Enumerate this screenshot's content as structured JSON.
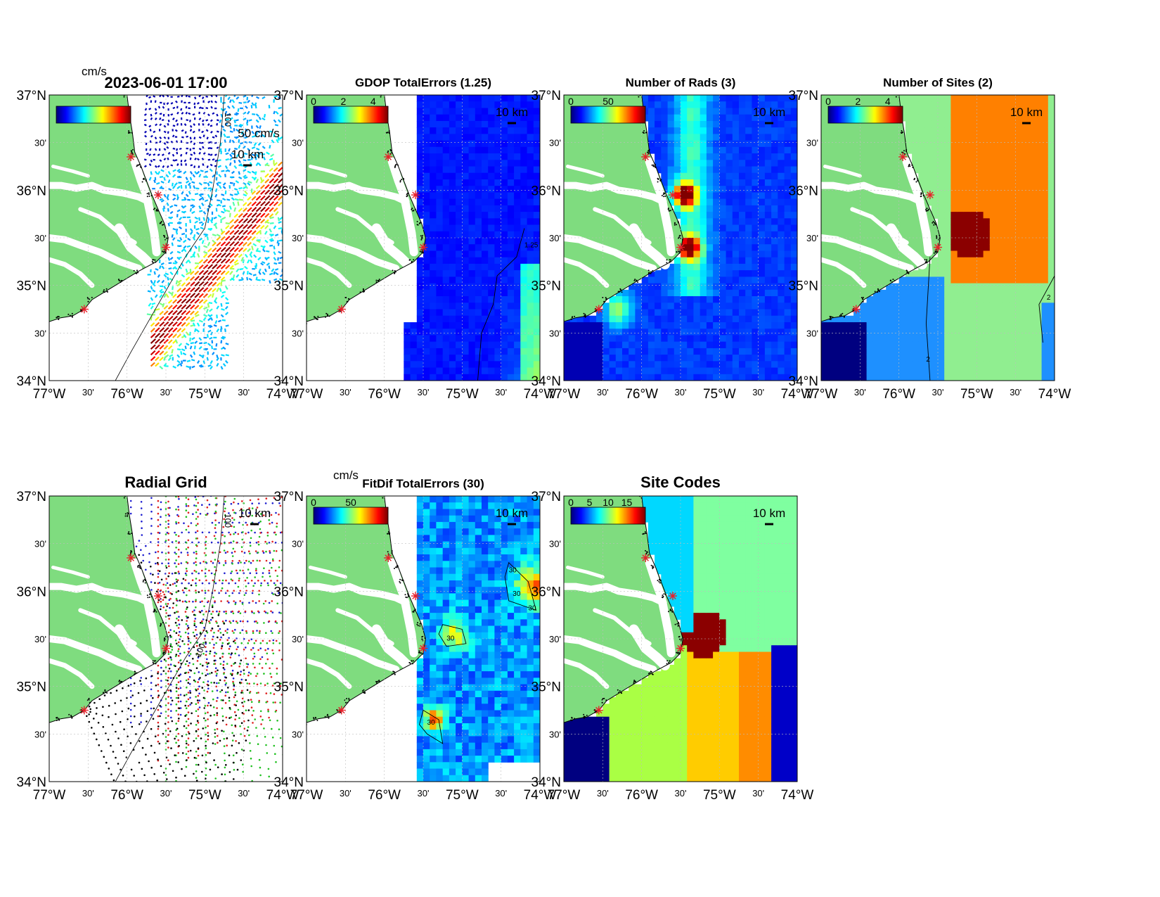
{
  "figure": {
    "background": "#ffffff"
  },
  "colors": {
    "land": "#7fdc7f",
    "coast_dots": "#000000",
    "site_marker": "#e8202a",
    "grid_line": "#bdbdbd",
    "contour": "#000000"
  },
  "icons": {
    "site": "red-star-icon",
    "colorbar": "jet-colorbar-icon",
    "scale": "scale-bar-icon"
  },
  "axes_common": {
    "lat_ticks": [
      "37°N",
      "30'",
      "36°N",
      "30'",
      "35°N",
      "30'",
      "34°N"
    ],
    "lon_ticks": [
      "77°W",
      "30'",
      "76°W",
      "30'",
      "75°W",
      "30'",
      "74°W"
    ],
    "scale_label": "10 km"
  },
  "chart_data": [
    {
      "panel": 1,
      "type": "heatmap",
      "title": "2023-06-01 17:00",
      "subtitle": "",
      "colorbar": {
        "unit": "cm/s",
        "colormap": "jet",
        "tick_labels": []
      },
      "annotations": [
        "50 cm/s",
        "10 km",
        "100"
      ],
      "xlim": [
        -77,
        -74
      ],
      "ylim": [
        34,
        37
      ],
      "sites": [
        {
          "lat": 36.35,
          "lon": -75.95
        },
        {
          "lat": 35.95,
          "lon": -75.6
        },
        {
          "lat": 35.4,
          "lon": -75.5
        },
        {
          "lat": 34.75,
          "lon": -76.55
        }
      ],
      "data_extent": {
        "lon": [
          -75.8,
          -74.0
        ],
        "lat": [
          34.0,
          37.0
        ]
      },
      "field": "surface current vectors",
      "max_speed_region": "Gulf Stream, southwest-northeast band"
    },
    {
      "panel": 2,
      "type": "heatmap",
      "title": "GDOP TotalErrors (1.25)",
      "colorbar": {
        "unit": "",
        "colormap": "jet",
        "tick_labels": [
          "0",
          "2",
          "4"
        ]
      },
      "contour_level": "1.25",
      "annotations": [
        "10 km"
      ],
      "xlim": [
        -77,
        -74
      ],
      "ylim": [
        34,
        37
      ],
      "data_extent": {
        "lon": [
          -75.55,
          -74.0
        ],
        "lat": [
          34.0,
          37.0
        ]
      }
    },
    {
      "panel": 3,
      "type": "heatmap",
      "title": "Number of Rads (3)",
      "colorbar": {
        "unit": "",
        "colormap": "jet",
        "tick_labels": [
          "0",
          "50"
        ]
      },
      "annotations": [
        "10 km"
      ],
      "xlim": [
        -77,
        -74
      ],
      "ylim": [
        34,
        37
      ],
      "data_extent": {
        "lon": [
          -77.0,
          -74.0
        ],
        "lat": [
          34.0,
          37.0
        ]
      }
    },
    {
      "panel": 4,
      "type": "heatmap",
      "title": "Number of Sites (2)",
      "colorbar": {
        "unit": "",
        "colormap": "jet",
        "tick_labels": [
          "0",
          "2",
          "4"
        ]
      },
      "contour_labels": [
        "2",
        "2"
      ],
      "annotations": [
        "10 km"
      ],
      "xlim": [
        -77,
        -74
      ],
      "ylim": [
        34,
        37
      ],
      "data_extent": {
        "lon": [
          -77.0,
          -74.0
        ],
        "lat": [
          34.0,
          37.0
        ]
      },
      "category_colors": [
        "#90ee90",
        "#ff8000",
        "#8b0000",
        "#1e90ff",
        "#000080"
      ]
    },
    {
      "panel": 5,
      "type": "scatter",
      "title": "Radial Grid",
      "annotations": [
        "10 km",
        "100",
        "100"
      ],
      "xlim": [
        -77,
        -74
      ],
      "ylim": [
        34,
        37
      ],
      "series": [
        {
          "color": "#1f1fd0",
          "site": {
            "lat": 36.35,
            "lon": -75.95
          }
        },
        {
          "color": "#e02020",
          "site": {
            "lat": 35.95,
            "lon": -75.6
          }
        },
        {
          "color": "#20c020",
          "site": {
            "lat": 35.4,
            "lon": -75.5
          }
        },
        {
          "color": "#000000",
          "site": {
            "lat": 34.75,
            "lon": -76.55
          }
        }
      ]
    },
    {
      "panel": 6,
      "type": "heatmap",
      "title": "FitDif TotalErrors (30)",
      "colorbar": {
        "unit": "cm/s",
        "colormap": "jet",
        "tick_labels": [
          "0",
          "50"
        ]
      },
      "contour_labels": [
        "30",
        "30",
        "30",
        "30",
        "30"
      ],
      "annotations": [
        "10 km"
      ],
      "xlim": [
        -77,
        -74
      ],
      "ylim": [
        34,
        37
      ],
      "data_extent": {
        "lon": [
          -75.55,
          -74.0
        ],
        "lat": [
          34.0,
          37.0
        ]
      }
    },
    {
      "panel": 7,
      "type": "heatmap",
      "title": "Site Codes",
      "colorbar": {
        "unit": "",
        "colormap": "jet",
        "tick_labels": [
          "0",
          "5",
          "10",
          "15"
        ]
      },
      "annotations": [
        "10 km"
      ],
      "xlim": [
        -77,
        -74
      ],
      "ylim": [
        34,
        37
      ],
      "data_extent": {
        "lon": [
          -77.0,
          -74.0
        ],
        "lat": [
          34.0,
          37.0
        ]
      },
      "category_colors": [
        "#00d8ff",
        "#7fffa0",
        "#8b0000",
        "#ff8c00",
        "#ffcc00",
        "#aaff44",
        "#0000c8",
        "#000080"
      ]
    }
  ]
}
